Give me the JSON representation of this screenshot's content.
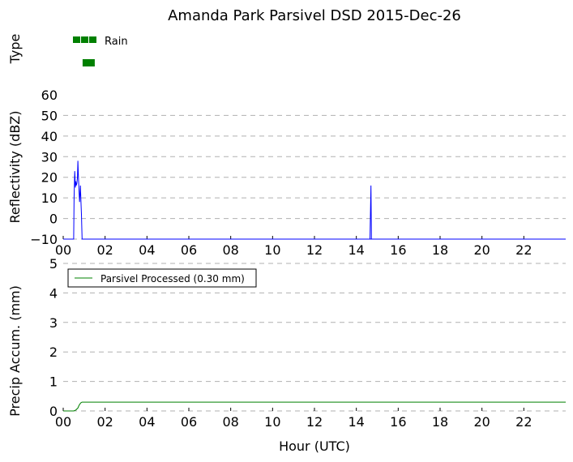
{
  "title": "Amanda Park Parsivel DSD 2015-Dec-26",
  "chart_data": [
    {
      "type": "area",
      "panel": "type",
      "ylabel": "Type",
      "legend": [
        "Rain"
      ],
      "colors": {
        "rain": "#008000"
      },
      "x_ticks": [],
      "intervals": [
        {
          "label": "Rain",
          "start": 0.5,
          "end": 1.0
        }
      ]
    },
    {
      "type": "line",
      "panel": "reflectivity",
      "xlabel": "",
      "ylabel": "Reflectivity (dBZ)",
      "ylim": [
        -10,
        60
      ],
      "y_ticks": [
        "60",
        "50",
        "40",
        "30",
        "20",
        "10",
        "0",
        "−10"
      ],
      "xlim": [
        0,
        24
      ],
      "x_ticks": [
        "00",
        "02",
        "04",
        "06",
        "08",
        "10",
        "12",
        "14",
        "16",
        "18",
        "20",
        "22"
      ],
      "grid": true,
      "series": [
        {
          "color": "#0000ff",
          "x": [
            0,
            0.5,
            0.52,
            0.55,
            0.58,
            0.6,
            0.62,
            0.65,
            0.68,
            0.7,
            0.72,
            0.75,
            0.78,
            0.8,
            0.82,
            0.85,
            0.87,
            0.9,
            0.92,
            0.95,
            24
          ],
          "y": [
            -10,
            -10,
            10,
            23,
            15,
            18,
            16,
            17,
            20,
            28,
            22,
            14,
            8,
            12,
            16,
            7,
            2,
            -10,
            -10,
            -10,
            -10
          ]
        },
        {
          "color": "#0000ff",
          "x": [
            14.6,
            14.65,
            14.68,
            14.7,
            14.72,
            14.75
          ],
          "y": [
            -10,
            -10,
            5,
            16,
            -10,
            -10
          ]
        }
      ]
    },
    {
      "type": "line",
      "panel": "precip",
      "xlabel": "Hour (UTC)",
      "ylabel": "Precip Accum. (mm)",
      "ylim": [
        0,
        5
      ],
      "y_ticks": [
        "5",
        "4",
        "3",
        "2",
        "1",
        "0"
      ],
      "xlim": [
        0,
        24
      ],
      "x_ticks": [
        "00",
        "02",
        "04",
        "06",
        "08",
        "10",
        "12",
        "14",
        "16",
        "18",
        "20",
        "22"
      ],
      "grid": true,
      "legend_position": "top-left",
      "series": [
        {
          "name": "Parsivel Processed (0.30 mm)",
          "color": "#008000",
          "x": [
            0,
            0.5,
            0.6,
            0.7,
            0.75,
            0.8,
            0.85,
            0.9,
            0.95,
            1.0,
            24
          ],
          "y": [
            0,
            0,
            0.03,
            0.1,
            0.18,
            0.24,
            0.28,
            0.3,
            0.3,
            0.3,
            0.3
          ]
        }
      ]
    }
  ]
}
